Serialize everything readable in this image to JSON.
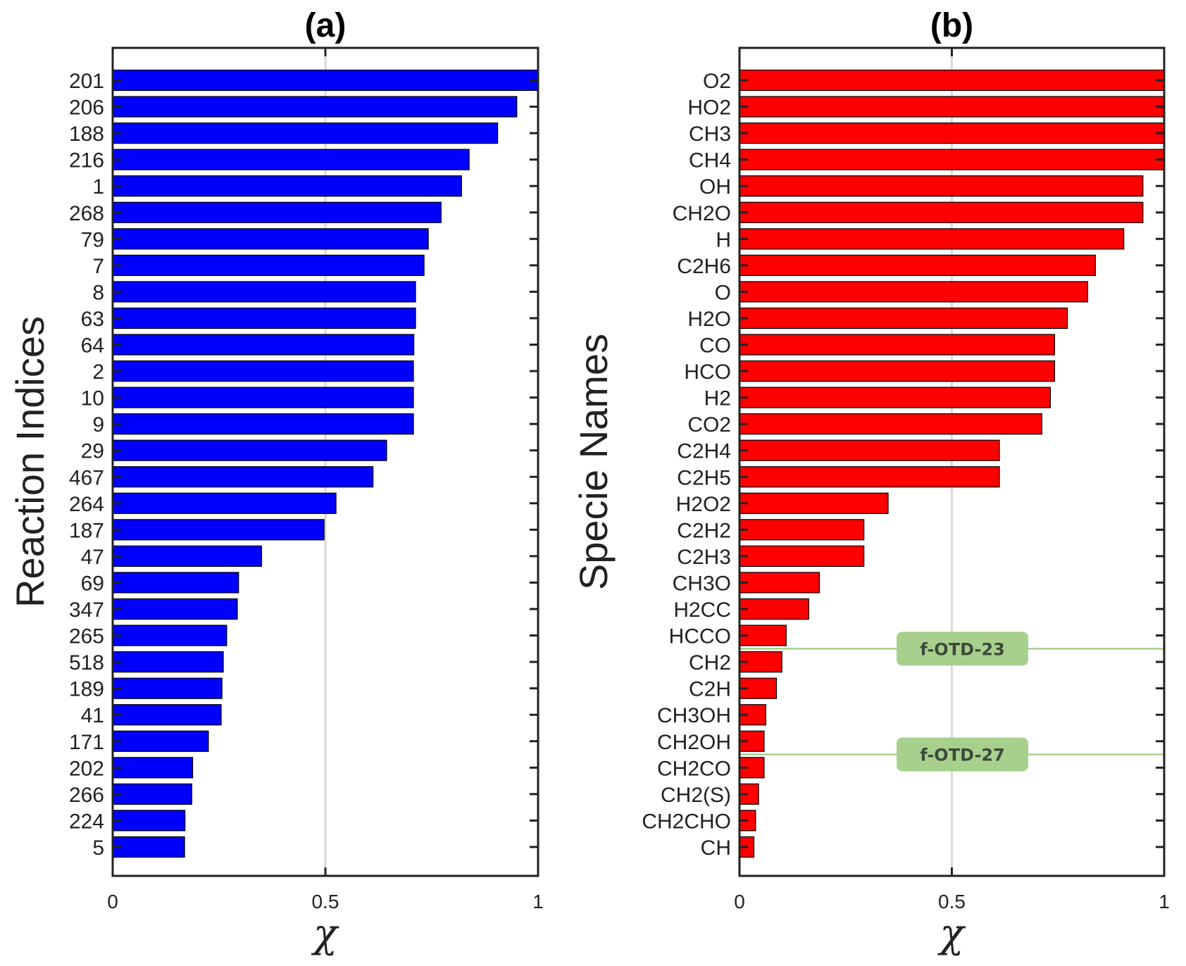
{
  "chart_data": [
    {
      "type": "bar",
      "orientation": "horizontal",
      "title": "(a)",
      "ylabel": "Reaction Indices",
      "xlabel": "χ",
      "xlim": [
        0,
        1
      ],
      "xticks": [
        "0",
        "0.5",
        "1"
      ],
      "grid": "vertical line at 0.5",
      "bar_color": "#0000ff",
      "categories": [
        "201",
        "206",
        "188",
        "216",
        "1",
        "268",
        "79",
        "7",
        "8",
        "63",
        "64",
        "2",
        "10",
        "9",
        "29",
        "467",
        "264",
        "187",
        "47",
        "69",
        "347",
        "265",
        "518",
        "189",
        "41",
        "171",
        "202",
        "266",
        "224",
        "5"
      ],
      "values": [
        1.0,
        0.95,
        0.905,
        0.838,
        0.82,
        0.772,
        0.742,
        0.732,
        0.712,
        0.712,
        0.708,
        0.707,
        0.707,
        0.707,
        0.644,
        0.612,
        0.525,
        0.497,
        0.35,
        0.296,
        0.293,
        0.268,
        0.26,
        0.257,
        0.255,
        0.225,
        0.188,
        0.186,
        0.17,
        0.169
      ],
      "annotations": []
    },
    {
      "type": "bar",
      "orientation": "horizontal",
      "title": "(b)",
      "ylabel": "Specie Names",
      "xlabel": "χ",
      "xlim": [
        0,
        1
      ],
      "xticks": [
        "0",
        "0.5",
        "1"
      ],
      "grid": "vertical line at 0.5",
      "bar_color": "#ff0000",
      "categories": [
        "O2",
        "HO2",
        "CH3",
        "CH4",
        "OH",
        "CH2O",
        "H",
        "C2H6",
        "O",
        "H2O",
        "CO",
        "HCO",
        "H2",
        "CO2",
        "C2H4",
        "C2H5",
        "H2O2",
        "C2H2",
        "C2H3",
        "CH3O",
        "H2CC",
        "HCCO",
        "CH2",
        "C2H",
        "CH3OH",
        "CH2OH",
        "CH2CO",
        "CH2(S)",
        "CH2CHO",
        "CH"
      ],
      "values": [
        1.0,
        1.0,
        1.0,
        1.0,
        0.95,
        0.95,
        0.905,
        0.838,
        0.82,
        0.772,
        0.742,
        0.742,
        0.732,
        0.712,
        0.612,
        0.612,
        0.35,
        0.293,
        0.293,
        0.188,
        0.163,
        0.11,
        0.1,
        0.087,
        0.062,
        0.058,
        0.058,
        0.045,
        0.038,
        0.034
      ],
      "annotations": [
        {
          "text": "f-OTD-23",
          "between": [
            "HCCO",
            "CH2"
          ],
          "color": "#a8d08d"
        },
        {
          "text": "f-OTD-27",
          "between": [
            "CH2OH",
            "CH2CO"
          ],
          "color": "#a8d08d"
        }
      ]
    }
  ]
}
